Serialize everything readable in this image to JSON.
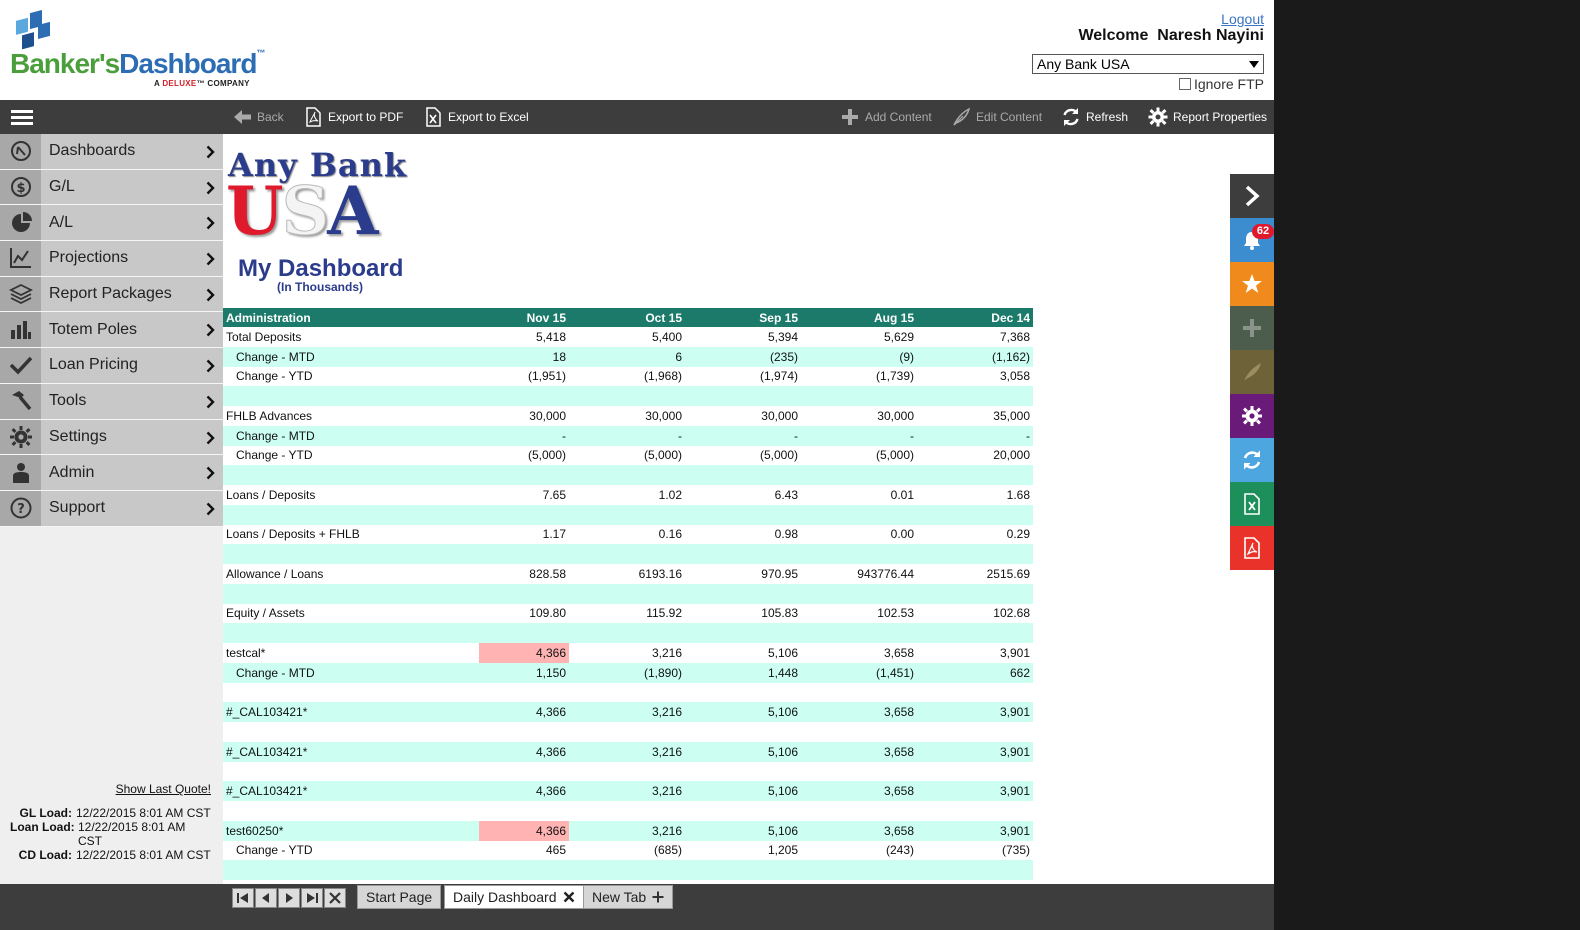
{
  "header": {
    "logo_banker": "Banker's",
    "logo_dashboard": "Dashboard",
    "logo_tm": "™",
    "logo_sub_prefix": "A ",
    "logo_sub_brand": "DELUXE",
    "logo_sub_suffix": "™ COMPANY",
    "logout": "Logout",
    "welcome": "Welcome  Naresh Nayini",
    "bank_selected": "Any Bank USA",
    "ignore_ftp": "Ignore FTP"
  },
  "toolbar": {
    "back": "Back",
    "export_pdf": "Export to PDF",
    "export_excel": "Export to Excel",
    "add_content": "Add Content",
    "edit_content": "Edit Content",
    "refresh": "Refresh",
    "report_properties": "Report Properties"
  },
  "sidebar": {
    "items": [
      {
        "label": "Dashboards",
        "icon": "compass-icon"
      },
      {
        "label": "G/L",
        "icon": "dollar-icon"
      },
      {
        "label": "A/L",
        "icon": "pie-icon"
      },
      {
        "label": "Projections",
        "icon": "line-chart-icon"
      },
      {
        "label": "Report Packages",
        "icon": "layers-icon"
      },
      {
        "label": "Totem Poles",
        "icon": "bar-chart-icon"
      },
      {
        "label": "Loan Pricing",
        "icon": "check-icon"
      },
      {
        "label": "Tools",
        "icon": "hammer-icon"
      },
      {
        "label": "Settings",
        "icon": "gear-icon"
      },
      {
        "label": "Admin",
        "icon": "user-icon"
      },
      {
        "label": "Support",
        "icon": "help-icon"
      }
    ],
    "show_last_quote": "Show Last Quote!",
    "loads": [
      {
        "label": "GL Load:",
        "value": "12/22/2015 8:01 AM CST"
      },
      {
        "label": "Loan Load:",
        "value": "12/22/2015 8:01 AM CST"
      },
      {
        "label": "CD Load:",
        "value": "12/22/2015 8:01 AM CST"
      }
    ]
  },
  "content": {
    "bank_logo_top": "Any Bank",
    "bank_logo_u": "U",
    "bank_logo_s": "S",
    "bank_logo_a": "A",
    "title": "My Dashboard",
    "subtitle": "(In Thousands)",
    "table": {
      "headers": [
        "Administration",
        "Nov 15",
        "Oct 15",
        "Sep 15",
        "Aug 15",
        "Dec 14"
      ],
      "rows": [
        {
          "label": "Total Deposits",
          "values": [
            "5,418",
            "5,400",
            "5,394",
            "5,629",
            "7,368"
          ]
        },
        {
          "label": "Change - MTD",
          "values": [
            "18",
            "6",
            "(235)",
            "(9)",
            "(1,162)"
          ],
          "indent": true
        },
        {
          "label": "Change - YTD",
          "values": [
            "(1,951)",
            "(1,968)",
            "(1,974)",
            "(1,739)",
            "3,058"
          ],
          "indent": true
        },
        {
          "label": "",
          "values": [
            "",
            "",
            "",
            "",
            ""
          ]
        },
        {
          "label": "FHLB Advances",
          "values": [
            "30,000",
            "30,000",
            "30,000",
            "30,000",
            "35,000"
          ]
        },
        {
          "label": "Change - MTD",
          "values": [
            "-",
            "-",
            "-",
            "-",
            "-"
          ],
          "indent": true
        },
        {
          "label": "Change - YTD",
          "values": [
            "(5,000)",
            "(5,000)",
            "(5,000)",
            "(5,000)",
            "20,000"
          ],
          "indent": true
        },
        {
          "label": "",
          "values": [
            "",
            "",
            "",
            "",
            ""
          ]
        },
        {
          "label": "Loans / Deposits",
          "values": [
            "7.65",
            "1.02",
            "6.43",
            "0.01",
            "1.68"
          ]
        },
        {
          "label": "",
          "values": [
            "",
            "",
            "",
            "",
            ""
          ]
        },
        {
          "label": "Loans / Deposits + FHLB",
          "values": [
            "1.17",
            "0.16",
            "0.98",
            "0.00",
            "0.29"
          ]
        },
        {
          "label": "",
          "values": [
            "",
            "",
            "",
            "",
            ""
          ]
        },
        {
          "label": "Allowance / Loans",
          "values": [
            "828.58",
            "6193.16",
            "970.95",
            "943776.44",
            "2515.69"
          ]
        },
        {
          "label": "",
          "values": [
            "",
            "",
            "",
            "",
            ""
          ]
        },
        {
          "label": "Equity / Assets",
          "values": [
            "109.80",
            "115.92",
            "105.83",
            "102.53",
            "102.68"
          ]
        },
        {
          "label": "",
          "values": [
            "",
            "",
            "",
            "",
            ""
          ]
        },
        {
          "label": "testcal*",
          "values": [
            "4,366",
            "3,216",
            "5,106",
            "3,658",
            "3,901"
          ],
          "highlight": true
        },
        {
          "label": "Change - MTD",
          "values": [
            "1,150",
            "(1,890)",
            "1,448",
            "(1,451)",
            "662"
          ],
          "indent": true
        },
        {
          "label": "",
          "values": [
            "",
            "",
            "",
            "",
            ""
          ]
        },
        {
          "label": "#_CAL103421*",
          "values": [
            "4,366",
            "3,216",
            "5,106",
            "3,658",
            "3,901"
          ]
        },
        {
          "label": "",
          "values": [
            "",
            "",
            "",
            "",
            ""
          ]
        },
        {
          "label": "#_CAL103421*",
          "values": [
            "4,366",
            "3,216",
            "5,106",
            "3,658",
            "3,901"
          ]
        },
        {
          "label": "",
          "values": [
            "",
            "",
            "",
            "",
            ""
          ]
        },
        {
          "label": "#_CAL103421*",
          "values": [
            "4,366",
            "3,216",
            "5,106",
            "3,658",
            "3,901"
          ]
        },
        {
          "label": "",
          "values": [
            "",
            "",
            "",
            "",
            ""
          ]
        },
        {
          "label": "test60250*",
          "values": [
            "4,366",
            "3,216",
            "5,106",
            "3,658",
            "3,901"
          ],
          "highlight": true
        },
        {
          "label": "Change - YTD",
          "values": [
            "465",
            "(685)",
            "1,205",
            "(243)",
            "(735)"
          ],
          "indent": true
        },
        {
          "label": "",
          "values": [
            "",
            "",
            "",
            "",
            ""
          ]
        }
      ]
    }
  },
  "rail": {
    "notifications_count": "62",
    "colors": {
      "collapse": "#3d3d3d",
      "notifications": "#3b8dd0",
      "favorites": "#f08a1c",
      "add": "#4d5d4d",
      "edit": "#6e6238",
      "properties": "#6a1b7a",
      "refresh": "#4ea6e0",
      "excel": "#1d8f5b",
      "pdf": "#e8322a"
    }
  },
  "tabs": {
    "items": [
      {
        "label": "Start Page",
        "active": false,
        "closable": false
      },
      {
        "label": "Daily Dashboard",
        "active": true,
        "closable": true
      },
      {
        "label": "New Tab",
        "active": false,
        "closable": false,
        "add": true
      }
    ]
  }
}
